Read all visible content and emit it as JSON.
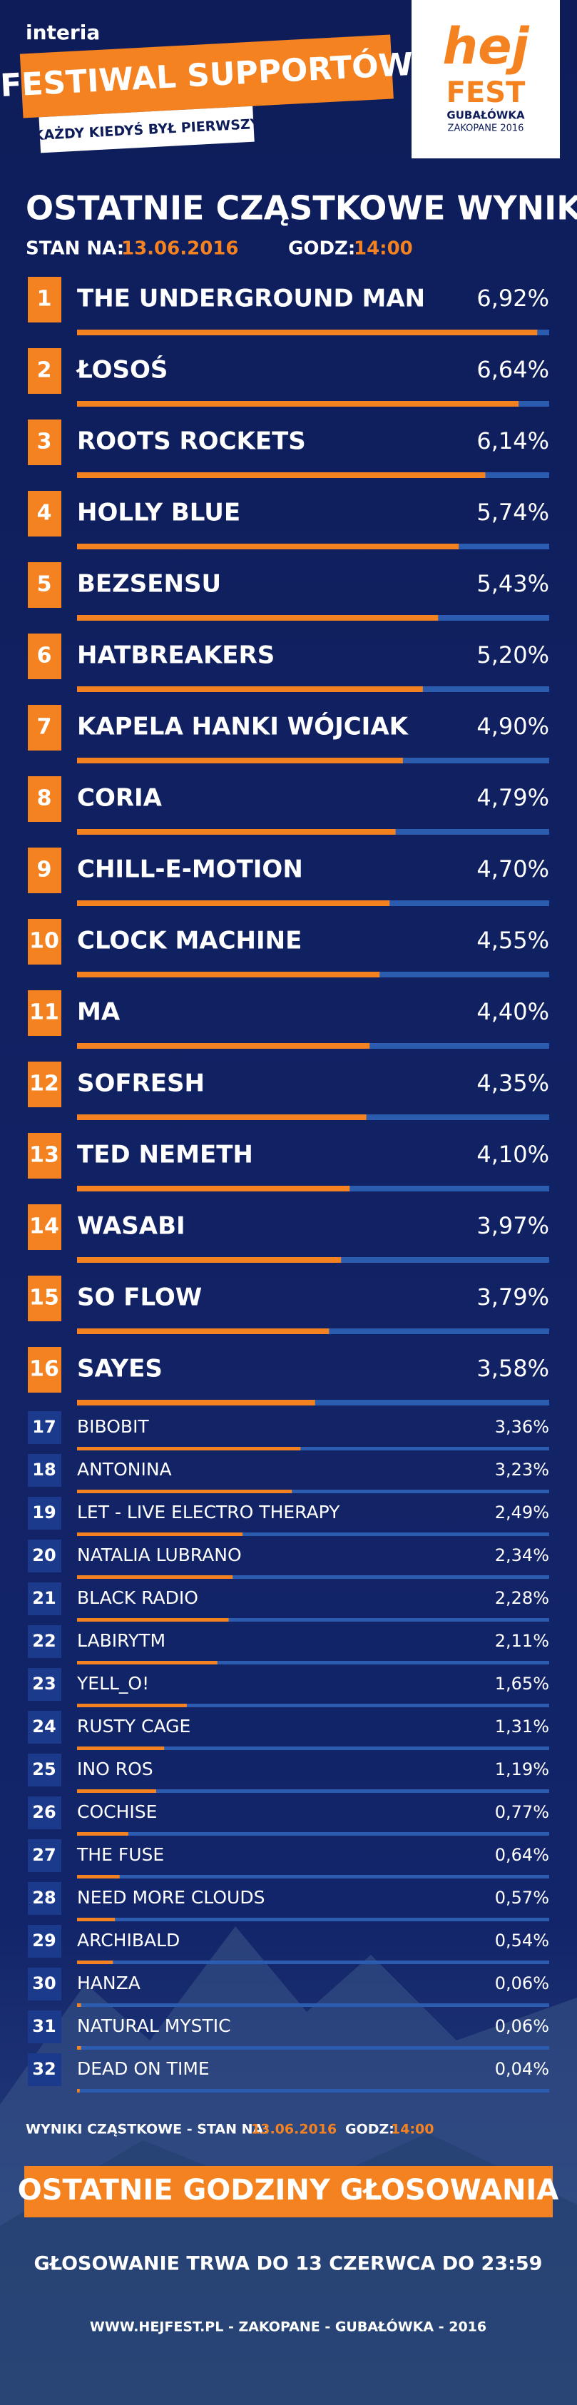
{
  "header": {
    "brand": "interia",
    "banner": "FESTIWAL SUPPORTÓW",
    "tagline": "KAŻDY KIEDYŚ BYŁ PIERWSZY",
    "logo_top": "hej",
    "logo_mid": "FEST",
    "logo_place": "GUBAŁÓWKA",
    "logo_year": "ZAKOPANE 2016"
  },
  "chart_data": {
    "type": "bar",
    "title": "OSTATNIE CZĄSTKOWE WYNIKI",
    "status_label": "STAN NA:",
    "status_date": "13.06.2016",
    "time_label": "GODZ:",
    "time_value": "14:00",
    "ranks": [
      1,
      2,
      3,
      4,
      5,
      6,
      7,
      8,
      9,
      10,
      11,
      12,
      13,
      14,
      15,
      16,
      17,
      18,
      19,
      20,
      21,
      22,
      23,
      24,
      25,
      26,
      27,
      28,
      29,
      30,
      31,
      32
    ],
    "categories": [
      "THE UNDERGROUND MAN",
      "ŁOSOŚ",
      "ROOTS ROCKETS",
      "HOLLY BLUE",
      "BEZSENSU",
      "HATBREAKERS",
      "KAPELA HANKI WÓJCIAK",
      "CORIA",
      "CHILL-E-MOTION",
      "CLOCK MACHINE",
      "MA",
      "SOFRESH",
      "TED NEMETH",
      "WASABI",
      "SO FLOW",
      "SAYES",
      "BIBOBIT",
      "ANTONINA",
      "LET - LIVE ELECTRO THERAPY",
      "NATALIA LUBRANO",
      "BLACK RADIO",
      "LABIRYTM",
      "YELL_O!",
      "RUSTY CAGE",
      "INO ROS",
      "COCHISE",
      "THE FUSE",
      "NEED MORE CLOUDS",
      "ARCHIBALD",
      "HANZA",
      "NATURAL MYSTIC",
      "DEAD ON TIME"
    ],
    "values": [
      6.92,
      6.64,
      6.14,
      5.74,
      5.43,
      5.2,
      4.9,
      4.79,
      4.7,
      4.55,
      4.4,
      4.35,
      4.1,
      3.97,
      3.79,
      3.58,
      3.36,
      3.23,
      2.49,
      2.34,
      2.28,
      2.11,
      1.65,
      1.31,
      1.19,
      0.77,
      0.64,
      0.57,
      0.54,
      0.06,
      0.06,
      0.04
    ],
    "value_labels": [
      "6,92%",
      "6,64%",
      "6,14%",
      "5,74%",
      "5,43%",
      "5,20%",
      "4,90%",
      "4,79%",
      "4,70%",
      "4,55%",
      "4,40%",
      "4,35%",
      "4,10%",
      "3,97%",
      "3,79%",
      "3,58%",
      "3,36%",
      "3,23%",
      "2,49%",
      "2,34%",
      "2,28%",
      "2,11%",
      "1,65%",
      "1,31%",
      "1,19%",
      "0,77%",
      "0,64%",
      "0,57%",
      "0,54%",
      "0,06%",
      "0,06%",
      "0,04%"
    ],
    "xlim": [
      0,
      7.1
    ],
    "color": "#f58220",
    "track_color": "#2c5cb0"
  },
  "footer": {
    "note_label": "WYNIKI CZĄSTKOWE - STAN NA:",
    "note_date": "13.06.2016",
    "note_time_label": "GODZ:",
    "note_time": "14:00",
    "banner": "OSTATNIE GODZINY GŁOSOWANIA",
    "deadline": "GŁOSOWANIE TRWA DO 13 CZERWCA DO 23:59",
    "site": "WWW.HEJFEST.PL  - ZAKOPANE - GUBAŁÓWKA - 2016"
  }
}
